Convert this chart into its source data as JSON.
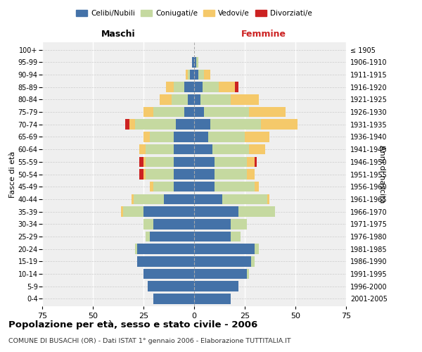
{
  "age_groups": [
    "0-4",
    "5-9",
    "10-14",
    "15-19",
    "20-24",
    "25-29",
    "30-34",
    "35-39",
    "40-44",
    "45-49",
    "50-54",
    "55-59",
    "60-64",
    "65-69",
    "70-74",
    "75-79",
    "80-84",
    "85-89",
    "90-94",
    "95-99",
    "100+"
  ],
  "birth_years": [
    "2001-2005",
    "1996-2000",
    "1991-1995",
    "1986-1990",
    "1981-1985",
    "1976-1980",
    "1971-1975",
    "1966-1970",
    "1961-1965",
    "1956-1960",
    "1951-1955",
    "1946-1950",
    "1941-1945",
    "1936-1940",
    "1931-1935",
    "1926-1930",
    "1921-1925",
    "1916-1920",
    "1911-1915",
    "1906-1910",
    "≤ 1905"
  ],
  "colors": {
    "celibi": "#4472a8",
    "coniugati": "#c5d9a0",
    "vedovi": "#f5c96a",
    "divorziati": "#cc2222"
  },
  "maschi": {
    "celibi": [
      20,
      23,
      25,
      28,
      28,
      22,
      20,
      25,
      15,
      10,
      10,
      10,
      10,
      10,
      9,
      5,
      3,
      5,
      2,
      1,
      0
    ],
    "coniugati": [
      0,
      0,
      0,
      0,
      1,
      2,
      5,
      10,
      15,
      10,
      14,
      14,
      14,
      12,
      20,
      15,
      8,
      5,
      1,
      0,
      0
    ],
    "vedovi": [
      0,
      0,
      0,
      0,
      0,
      0,
      0,
      1,
      1,
      2,
      1,
      1,
      3,
      3,
      3,
      5,
      6,
      4,
      1,
      0,
      0
    ],
    "divorziati": [
      0,
      0,
      0,
      0,
      0,
      0,
      0,
      0,
      0,
      0,
      2,
      2,
      0,
      0,
      2,
      0,
      0,
      0,
      0,
      0,
      0
    ]
  },
  "femmine": {
    "celibi": [
      18,
      22,
      26,
      28,
      30,
      18,
      18,
      22,
      14,
      10,
      10,
      10,
      9,
      7,
      8,
      5,
      3,
      4,
      2,
      1,
      0
    ],
    "coniugati": [
      0,
      0,
      1,
      2,
      2,
      5,
      8,
      18,
      22,
      20,
      16,
      16,
      18,
      18,
      25,
      22,
      15,
      8,
      3,
      1,
      0
    ],
    "vedovi": [
      0,
      0,
      0,
      0,
      0,
      0,
      0,
      0,
      1,
      2,
      4,
      4,
      8,
      12,
      18,
      18,
      14,
      8,
      3,
      0,
      0
    ],
    "divorziati": [
      0,
      0,
      0,
      0,
      0,
      0,
      0,
      0,
      0,
      0,
      0,
      1,
      0,
      0,
      0,
      0,
      0,
      2,
      0,
      0,
      0
    ]
  },
  "title": "Popolazione per età, sesso e stato civile - 2006",
  "subtitle": "COMUNE DI BUSACHI (OR) - Dati ISTAT 1° gennaio 2006 - Elaborazione TUTTITALIA.IT",
  "xlabel_left": "Maschi",
  "xlabel_right": "Femmine",
  "ylabel_left": "Fasce di età",
  "ylabel_right": "Anni di nascita",
  "xlim": 75,
  "legend_labels": [
    "Celibi/Nubili",
    "Coniugati/e",
    "Vedovi/e",
    "Divorziati/e"
  ]
}
